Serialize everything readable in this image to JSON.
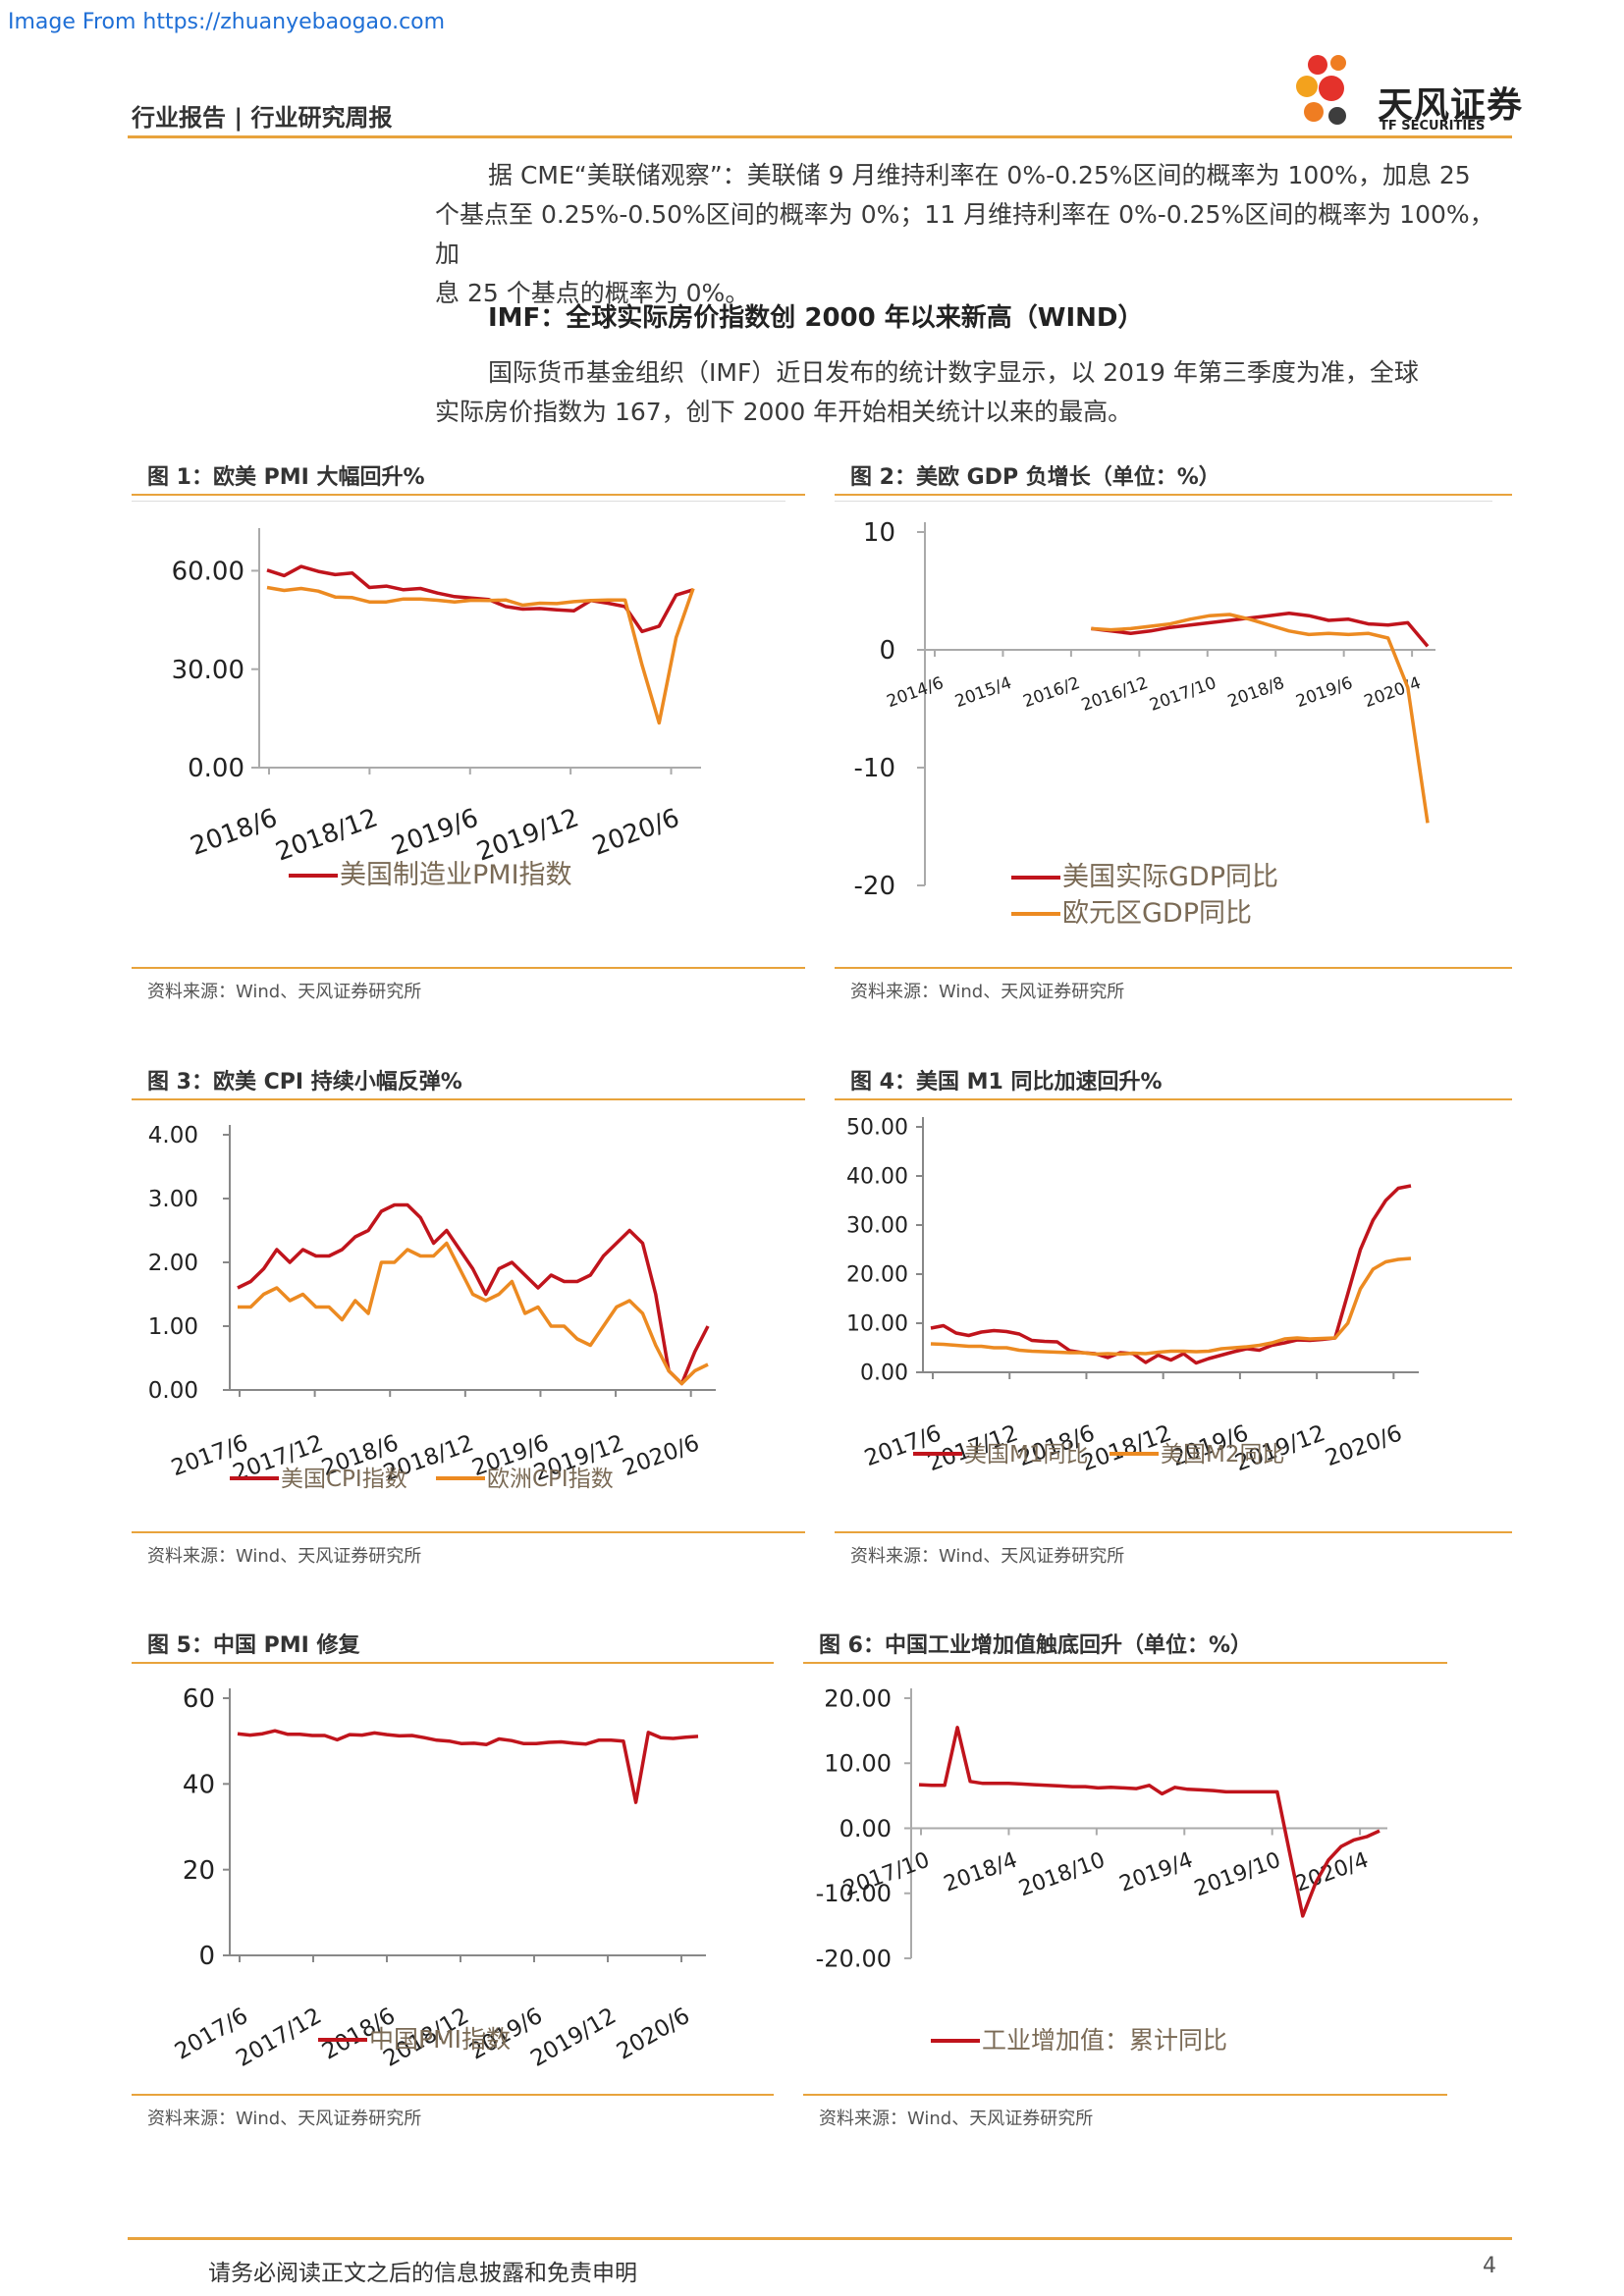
{
  "watermark": "Image From https://zhuanyebaogao.com",
  "header": {
    "category": "行业报告 | 行业研究周报",
    "logo_name": "天风证券",
    "logo_en": "TF SECURITIES"
  },
  "paragraphs": {
    "p1": [
      "据 CME“美联储观察”：美联储 9 月维持利率在 0%-0.25%区间的概率为 100%，加息 25",
      "个基点至 0.25%-0.50%区间的概率为 0%；11 月维持利率在 0%-0.25%区间的概率为 100%，加",
      "息 25 个基点的概率为 0%。"
    ],
    "subhead": "IMF：全球实际房价指数创 2000 年以来新高（WIND）",
    "p2": [
      "国际货币基金组织（IMF）近日发布的统计数字显示，以 2019 年第三季度为准，全球",
      "实际房价指数为 167，创下 2000 年开始相关统计以来的最高。"
    ]
  },
  "colors": {
    "red": "#c0141c",
    "orange": "#ec8a21",
    "accent": "#e8a33c",
    "axis": "#888888"
  },
  "source_text": "资料来源：Wind、天风证券研究所",
  "footer": {
    "disclaimer": "请务必阅读正文之后的信息披露和免责申明",
    "page": "4"
  },
  "chart_data": [
    {
      "id": "fig1",
      "type": "line",
      "title": "图 1：欧美 PMI 大幅回升%",
      "x_ticks": [
        "2018/6",
        "2018/12",
        "2019/6",
        "2019/12",
        "2020/6"
      ],
      "y_ticks": [
        "60.00",
        "30.00",
        "0.00"
      ],
      "ylim": [
        0,
        70
      ],
      "series": [
        {
          "name": "美国制造业PMI指数",
          "color": "red",
          "values": [
            60.2,
            58.5,
            61.3,
            59.8,
            58.8,
            59.3,
            54.9,
            55.3,
            54.2,
            54.6,
            53.2,
            52.1,
            51.7,
            51.2,
            49.1,
            48.3,
            48.5,
            48.1,
            47.8,
            50.9,
            50.1,
            49.1,
            41.5,
            43.1,
            52.6,
            54.2
          ],
          "show_legend": true
        },
        {
          "name": "",
          "color": "orange",
          "values": [
            54.9,
            54.0,
            54.6,
            53.8,
            52.0,
            51.8,
            50.5,
            50.5,
            51.4,
            51.4,
            51.0,
            50.5,
            51.0,
            50.9,
            51.1,
            49.5,
            50.1,
            50.0,
            50.6,
            50.9,
            51.1,
            51.1,
            31.3,
            13.6,
            39.6,
            54.6
          ],
          "show_legend": false
        }
      ]
    },
    {
      "id": "fig2",
      "type": "line",
      "title": "图 2：美欧 GDP 负增长（单位：%）",
      "x_ticks": [
        "2014/6",
        "2015/4",
        "2016/2",
        "2016/12",
        "2017/10",
        "2018/8",
        "2019/6",
        "2020/4"
      ],
      "y_ticks": [
        "10",
        "0",
        "-10",
        "-20"
      ],
      "ylim": [
        -20,
        10
      ],
      "series": [
        {
          "name": "美国实际GDP同比",
          "color": "red",
          "values": [
            null,
            null,
            null,
            null,
            null,
            null,
            null,
            null,
            1.8,
            1.6,
            1.4,
            1.6,
            1.9,
            2.1,
            2.3,
            2.5,
            2.7,
            2.9,
            3.1,
            2.9,
            2.5,
            2.6,
            2.2,
            2.1,
            2.3,
            0.3
          ],
          "show_legend": true
        },
        {
          "name": "欧元区GDP同比",
          "color": "orange",
          "values": [
            null,
            null,
            null,
            null,
            null,
            null,
            null,
            null,
            1.8,
            1.7,
            1.8,
            2.0,
            2.2,
            2.6,
            2.9,
            3.0,
            2.6,
            2.1,
            1.6,
            1.3,
            1.4,
            1.3,
            1.4,
            1.0,
            -3.2,
            -14.7
          ],
          "show_legend": true
        }
      ]
    },
    {
      "id": "fig3",
      "type": "line",
      "title": "图 3：欧美 CPI 持续小幅反弹%",
      "x_ticks": [
        "2017/6",
        "2017/12",
        "2018/6",
        "2018/12",
        "2019/6",
        "2019/12",
        "2020/6"
      ],
      "y_ticks": [
        "4.00",
        "3.00",
        "2.00",
        "1.00",
        "0.00"
      ],
      "ylim": [
        0,
        4
      ],
      "series": [
        {
          "name": "美国CPI指数",
          "color": "red",
          "values": [
            1.6,
            1.7,
            1.9,
            2.2,
            2.0,
            2.2,
            2.1,
            2.1,
            2.2,
            2.4,
            2.5,
            2.8,
            2.9,
            2.9,
            2.7,
            2.3,
            2.5,
            2.2,
            1.9,
            1.5,
            1.9,
            2.0,
            1.8,
            1.6,
            1.8,
            1.7,
            1.7,
            1.8,
            2.1,
            2.3,
            2.5,
            2.3,
            1.5,
            0.3,
            0.1,
            0.6,
            1.0
          ],
          "show_legend": true
        },
        {
          "name": "欧洲CPI指数",
          "color": "orange",
          "values": [
            1.3,
            1.3,
            1.5,
            1.6,
            1.4,
            1.5,
            1.3,
            1.3,
            1.1,
            1.4,
            1.2,
            2.0,
            2.0,
            2.2,
            2.1,
            2.1,
            2.3,
            1.9,
            1.5,
            1.4,
            1.5,
            1.7,
            1.2,
            1.3,
            1.0,
            1.0,
            0.8,
            0.7,
            1.0,
            1.3,
            1.4,
            1.2,
            0.7,
            0.3,
            0.1,
            0.3,
            0.4
          ],
          "show_legend": true
        }
      ]
    },
    {
      "id": "fig4",
      "type": "line",
      "title": "图 4：美国 M1 同比加速回升%",
      "x_ticks": [
        "2017/6",
        "2017/12",
        "2018/6",
        "2018/12",
        "2019/6",
        "2019/12",
        "2020/6"
      ],
      "y_ticks": [
        "50.00",
        "40.00",
        "30.00",
        "20.00",
        "10.00",
        "0.00"
      ],
      "ylim": [
        0,
        50
      ],
      "series": [
        {
          "name": "美国M1同比",
          "color": "red",
          "values": [
            9.0,
            9.5,
            8.0,
            7.5,
            8.2,
            8.5,
            8.3,
            7.8,
            6.5,
            6.3,
            6.2,
            4.4,
            4.0,
            3.8,
            3.0,
            4.0,
            3.8,
            2.0,
            3.5,
            2.5,
            3.8,
            1.9,
            2.8,
            3.5,
            4.2,
            4.8,
            4.5,
            5.5,
            6.0,
            6.6,
            6.5,
            6.7,
            7.0,
            16.0,
            25.0,
            31.0,
            35.0,
            37.5,
            38.0
          ],
          "show_legend": true
        },
        {
          "name": "美国M2同比",
          "color": "orange",
          "values": [
            5.8,
            5.7,
            5.5,
            5.3,
            5.3,
            5.0,
            5.0,
            4.5,
            4.3,
            4.2,
            4.1,
            4.0,
            4.0,
            3.7,
            3.8,
            3.7,
            3.9,
            3.8,
            4.1,
            4.3,
            4.3,
            4.2,
            4.3,
            4.8,
            5.0,
            5.2,
            5.5,
            6.0,
            6.8,
            7.0,
            6.8,
            6.9,
            7.0,
            10.0,
            17.0,
            21.0,
            22.5,
            23.0,
            23.2
          ],
          "show_legend": true
        }
      ]
    },
    {
      "id": "fig5",
      "type": "line",
      "title": "图 5：中国 PMI 修复",
      "x_ticks": [
        "2017/6",
        "2017/12",
        "2018/6",
        "2018/12",
        "2019/6",
        "2019/12",
        "2020/6"
      ],
      "y_ticks": [
        "60",
        "40",
        "20",
        "0"
      ],
      "ylim": [
        0,
        60
      ],
      "series": [
        {
          "name": "中国PMI指数",
          "color": "red",
          "values": [
            51.7,
            51.4,
            51.7,
            52.4,
            51.6,
            51.6,
            51.3,
            51.3,
            50.3,
            51.5,
            51.4,
            51.9,
            51.5,
            51.2,
            51.3,
            50.8,
            50.2,
            50.0,
            49.4,
            49.5,
            49.2,
            50.5,
            50.1,
            49.4,
            49.4,
            49.7,
            49.8,
            49.5,
            49.3,
            50.2,
            50.2,
            50.0,
            35.7,
            52.0,
            50.8,
            50.6,
            50.9,
            51.1
          ],
          "show_legend": true
        }
      ]
    },
    {
      "id": "fig6",
      "type": "line",
      "title": "图 6：中国工业增加值触底回升（单位：%）",
      "x_ticks": [
        "2017/10",
        "2018/4",
        "2018/10",
        "2019/4",
        "2019/10",
        "2020/4"
      ],
      "y_ticks": [
        "20.00",
        "10.00",
        "0.00",
        "-10.00",
        "-20.00"
      ],
      "ylim": [
        -20,
        20
      ],
      "series": [
        {
          "name": "工业增加值：累计同比",
          "color": "red",
          "values": [
            6.7,
            6.6,
            6.6,
            15.5,
            7.2,
            6.9,
            6.9,
            6.9,
            6.8,
            6.7,
            6.6,
            6.5,
            6.4,
            6.4,
            6.2,
            6.3,
            6.2,
            6.1,
            6.6,
            5.3,
            6.3,
            6.0,
            5.9,
            5.8,
            5.6,
            5.6,
            5.6,
            5.6,
            5.6,
            -4.0,
            -13.5,
            -8.4,
            -4.9,
            -2.8,
            -1.8,
            -1.3,
            -0.4
          ],
          "show_legend": true
        }
      ]
    }
  ]
}
